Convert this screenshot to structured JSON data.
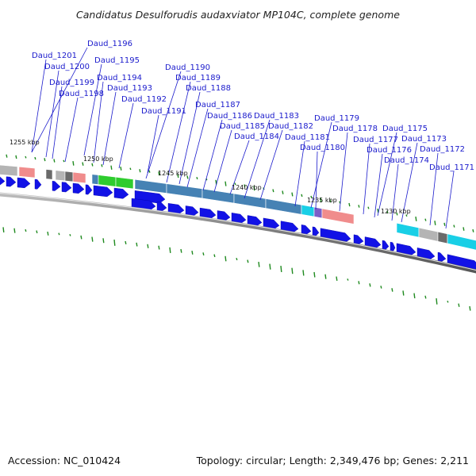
{
  "title": "Candidatus Desulforudis audaxviator MP104C, complete genome",
  "accession_label": "Accession: NC_010424",
  "topology_label": "Topology: circular; Length: 2,349,476 bp; Genes: 2,211",
  "colors": {
    "gene_label": "#1a1acc",
    "leader_line": "#1a1acc",
    "cds_arrow": "#1212e6",
    "backbone": "#808080",
    "gc_tick": "#1f8a1f"
  },
  "kbp_labels": [
    "1255 kbp",
    "1250 kbp",
    "1245 kbp",
    "1240 kbp",
    "1235 kbp",
    "1230 kbp"
  ],
  "gene_labels": [
    "Daud_1196",
    "Daud_1201",
    "Daud_1195",
    "Daud_1200",
    "Daud_1194",
    "Daud_1199",
    "Daud_1193",
    "Daud_1198",
    "Daud_1192",
    "Daud_1191",
    "Daud_1190",
    "Daud_1189",
    "Daud_1188",
    "Daud_1187",
    "Daud_1186",
    "Daud_1183",
    "Daud_1185",
    "Daud_1182",
    "Daud_1184",
    "Daud_1179",
    "Daud_1181",
    "Daud_1178",
    "Daud_1180",
    "Daud_1175",
    "Daud_1177",
    "Daud_1173",
    "Daud_1176",
    "Daud_1172",
    "Daud_1174",
    "Daud_1171"
  ],
  "feature_colors": {
    "gray": "#b4b4b4",
    "pink": "#f08c8c",
    "dark_gray": "#6a6a6a",
    "green": "#2ecc2e",
    "steel_blue": "#4682b4",
    "cyan": "#19cfe6",
    "purple": "#7b5fc8"
  }
}
